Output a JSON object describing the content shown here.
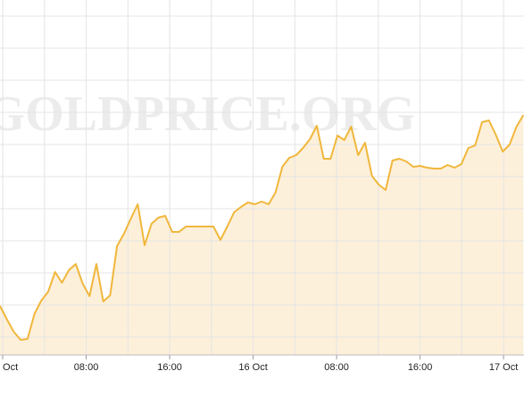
{
  "chart_data": {
    "type": "area",
    "watermark": "GOLDPRICE.ORG",
    "x": [
      -0.26,
      0.4,
      1.06,
      1.72,
      2.38,
      3.04,
      3.7,
      4.36,
      5.02,
      5.68,
      6.34,
      7.0,
      7.66,
      8.32,
      8.98,
      9.64,
      10.3,
      10.96,
      11.62,
      12.28,
      12.94,
      13.6,
      14.26,
      14.92,
      15.58,
      16.24,
      16.9,
      17.56,
      18.22,
      18.88,
      19.54,
      20.2,
      20.86,
      21.52,
      22.18,
      22.84,
      23.5,
      24.16,
      24.82,
      25.48,
      26.14,
      26.8,
      27.46,
      28.12,
      28.78,
      29.44,
      30.1,
      30.76,
      31.42,
      32.08,
      32.74,
      33.4,
      34.06,
      34.72,
      35.38,
      36.04,
      36.7,
      37.36,
      38.02,
      38.68,
      39.34,
      40.0,
      40.66,
      41.32,
      41.98,
      42.64,
      43.3,
      43.96,
      44.62,
      45.28,
      45.94,
      46.6,
      47.26,
      47.92,
      48.58,
      49.24,
      49.9
    ],
    "values": [
      55,
      40,
      26,
      17,
      18,
      46,
      61,
      71,
      93,
      81,
      95,
      102,
      80,
      66,
      102,
      60,
      67,
      122,
      136,
      153,
      169,
      123,
      147,
      154,
      156,
      138,
      138,
      144,
      144,
      144,
      144,
      144,
      129,
      144,
      160,
      166,
      171,
      169,
      172,
      169,
      182,
      211,
      221,
      224,
      232,
      242,
      257,
      220,
      220,
      246,
      241,
      256,
      224,
      238,
      201,
      191,
      185,
      218,
      220,
      217,
      211,
      212,
      210,
      209,
      209,
      213,
      210,
      214,
      232,
      235,
      261,
      263,
      247,
      228,
      236,
      256,
      269
    ],
    "color": "#f0b73c",
    "fill": "#fdf0da",
    "xlim": [
      -0.26,
      49.96
    ],
    "ylim": [
      0,
      398
    ],
    "xticks": [
      {
        "value": 0,
        "label": "Oct"
      },
      {
        "value": 8,
        "label": "08:00"
      },
      {
        "value": 16,
        "label": "16:00"
      },
      {
        "value": 24,
        "label": "16 Oct"
      },
      {
        "value": 32,
        "label": "08:00"
      },
      {
        "value": 40,
        "label": "16:00"
      },
      {
        "value": 48,
        "label": "17 Oct"
      }
    ],
    "xgrid": [
      4,
      12,
      20,
      28,
      36,
      44
    ],
    "yticks": [
      20,
      56,
      92,
      128,
      164,
      200,
      236,
      272,
      308,
      344,
      380
    ],
    "grid": true
  }
}
